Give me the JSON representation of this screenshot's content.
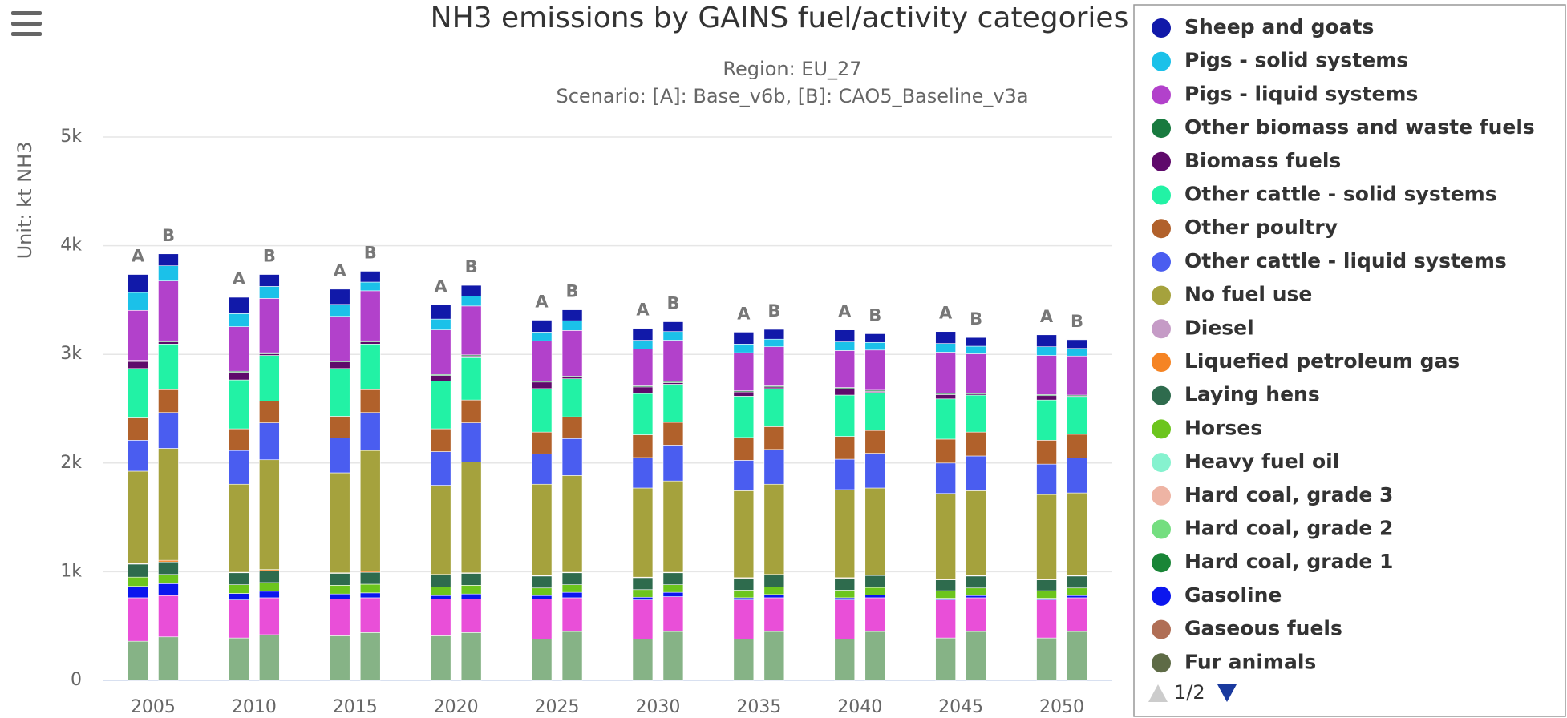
{
  "chart_data": {
    "type": "stacked_bar",
    "title": "NH3 emissions by GAINS fuel/activity categories",
    "subtitle": [
      "Region: EU_27",
      "Scenario: [A]: Base_v6b, [B]: CAO5_Baseline_v3a"
    ],
    "y_label": "Unit: kt NH3",
    "categories": [
      "2005",
      "2010",
      "2015",
      "2020",
      "2025",
      "2030",
      "2035",
      "2040",
      "2045",
      "2050"
    ],
    "stack_labels": [
      "A",
      "B"
    ],
    "ylim": [
      0,
      5000
    ],
    "yticks": [
      0,
      {
        "value": 1000,
        "label": "1k"
      },
      {
        "value": 2000,
        "label": "2k"
      },
      {
        "value": 3000,
        "label": "3k"
      },
      {
        "value": 4000,
        "label": "4k"
      },
      {
        "value": 5000,
        "label": "5k"
      }
    ],
    "grid": true,
    "legend_page": "1/2",
    "series": [
      {
        "name": "Sheep and goats",
        "color": "#1119a9",
        "values": [
          [
            165,
            110
          ],
          [
            150,
            110
          ],
          [
            140,
            100
          ],
          [
            130,
            100
          ],
          [
            110,
            100
          ],
          [
            110,
            90
          ],
          [
            110,
            90
          ],
          [
            110,
            80
          ],
          [
            110,
            80
          ],
          [
            110,
            80
          ]
        ]
      },
      {
        "name": "Pigs - solid systems",
        "color": "#1bc1e9",
        "values": [
          [
            165,
            140
          ],
          [
            120,
            110
          ],
          [
            110,
            80
          ],
          [
            100,
            90
          ],
          [
            80,
            90
          ],
          [
            80,
            80
          ],
          [
            80,
            70
          ],
          [
            80,
            70
          ],
          [
            80,
            70
          ],
          [
            80,
            70
          ]
        ]
      },
      {
        "name": "Pigs - liquid systems",
        "color": "#b241cb",
        "values": [
          [
            460,
            550
          ],
          [
            410,
            500
          ],
          [
            410,
            460
          ],
          [
            410,
            450
          ],
          [
            370,
            420
          ],
          [
            340,
            380
          ],
          [
            350,
            360
          ],
          [
            340,
            370
          ],
          [
            380,
            360
          ],
          [
            360,
            360
          ]
        ]
      },
      {
        "name": "Other biomass and waste fuels",
        "color": "#187a3f",
        "values": [
          [
            10,
            10
          ],
          [
            10,
            10
          ],
          [
            10,
            10
          ],
          [
            10,
            10
          ],
          [
            10,
            10
          ],
          [
            10,
            10
          ],
          [
            10,
            10
          ],
          [
            10,
            10
          ],
          [
            10,
            10
          ],
          [
            10,
            10
          ]
        ]
      },
      {
        "name": "Biomass fuels",
        "color": "#5f0a6b",
        "values": [
          [
            65,
            20
          ],
          [
            70,
            15
          ],
          [
            60,
            20
          ],
          [
            50,
            15
          ],
          [
            60,
            15
          ],
          [
            60,
            15
          ],
          [
            40,
            15
          ],
          [
            60,
            10
          ],
          [
            40,
            10
          ],
          [
            40,
            10
          ]
        ]
      },
      {
        "name": "Other cattle - solid systems",
        "color": "#22f2a5",
        "values": [
          [
            455,
            420
          ],
          [
            450,
            420
          ],
          [
            440,
            420
          ],
          [
            440,
            390
          ],
          [
            400,
            350
          ],
          [
            380,
            350
          ],
          [
            380,
            350
          ],
          [
            380,
            350
          ],
          [
            370,
            340
          ],
          [
            370,
            340
          ]
        ]
      },
      {
        "name": "Other poultry",
        "color": "#b1612b",
        "values": [
          [
            205,
            210
          ],
          [
            200,
            200
          ],
          [
            200,
            210
          ],
          [
            210,
            210
          ],
          [
            200,
            200
          ],
          [
            210,
            210
          ],
          [
            210,
            210
          ],
          [
            210,
            210
          ],
          [
            220,
            220
          ],
          [
            220,
            220
          ]
        ]
      },
      {
        "name": "Other cattle - liquid systems",
        "color": "#4a5df0",
        "values": [
          [
            285,
            330
          ],
          [
            310,
            340
          ],
          [
            320,
            350
          ],
          [
            310,
            360
          ],
          [
            280,
            340
          ],
          [
            280,
            330
          ],
          [
            280,
            320
          ],
          [
            280,
            320
          ],
          [
            280,
            320
          ],
          [
            280,
            320
          ]
        ]
      },
      {
        "name": "No fuel use",
        "color": "#a5a23d",
        "values": [
          [
            850,
            1030
          ],
          [
            810,
            1010
          ],
          [
            920,
            1110
          ],
          [
            820,
            1020
          ],
          [
            840,
            890
          ],
          [
            820,
            840
          ],
          [
            800,
            830
          ],
          [
            810,
            800
          ],
          [
            790,
            780
          ],
          [
            780,
            760
          ]
        ]
      },
      {
        "name": "Diesel",
        "color": "#c59bc6",
        "values": [
          [
            0,
            0
          ],
          [
            0,
            0
          ],
          [
            0,
            0
          ],
          [
            0,
            0
          ],
          [
            0,
            0
          ],
          [
            0,
            0
          ],
          [
            0,
            0
          ],
          [
            0,
            0
          ],
          [
            0,
            0
          ],
          [
            0,
            0
          ]
        ]
      },
      {
        "name": "Liquefied petroleum gas",
        "color": "#f58424",
        "values": [
          [
            5,
            15
          ],
          [
            5,
            10
          ],
          [
            5,
            10
          ],
          [
            5,
            5
          ],
          [
            5,
            5
          ],
          [
            5,
            5
          ],
          [
            5,
            5
          ],
          [
            5,
            5
          ],
          [
            5,
            5
          ],
          [
            5,
            5
          ]
        ]
      },
      {
        "name": "Laying hens",
        "color": "#2e6b4d",
        "values": [
          [
            120,
            115
          ],
          [
            110,
            110
          ],
          [
            110,
            110
          ],
          [
            110,
            110
          ],
          [
            110,
            110
          ],
          [
            110,
            110
          ],
          [
            110,
            110
          ],
          [
            110,
            110
          ],
          [
            100,
            110
          ],
          [
            100,
            110
          ]
        ]
      },
      {
        "name": "Horses",
        "color": "#6cc51d",
        "values": [
          [
            85,
            85
          ],
          [
            80,
            80
          ],
          [
            80,
            80
          ],
          [
            80,
            80
          ],
          [
            70,
            70
          ],
          [
            70,
            70
          ],
          [
            70,
            70
          ],
          [
            70,
            70
          ],
          [
            70,
            70
          ],
          [
            70,
            70
          ]
        ]
      },
      {
        "name": "Heavy fuel oil",
        "color": "#86f2cf",
        "values": [
          [
            0,
            0
          ],
          [
            0,
            0
          ],
          [
            0,
            0
          ],
          [
            0,
            0
          ],
          [
            0,
            0
          ],
          [
            0,
            0
          ],
          [
            0,
            0
          ],
          [
            0,
            0
          ],
          [
            0,
            0
          ],
          [
            0,
            0
          ]
        ]
      },
      {
        "name": "Hard coal, grade 3",
        "color": "#eeb4a4",
        "values": [
          [
            0,
            0
          ],
          [
            0,
            0
          ],
          [
            0,
            0
          ],
          [
            0,
            0
          ],
          [
            0,
            0
          ],
          [
            0,
            0
          ],
          [
            0,
            0
          ],
          [
            0,
            0
          ],
          [
            0,
            0
          ],
          [
            0,
            0
          ]
        ]
      },
      {
        "name": "Hard coal, grade 2",
        "color": "#74de80",
        "values": [
          [
            0,
            0
          ],
          [
            0,
            0
          ],
          [
            0,
            0
          ],
          [
            0,
            0
          ],
          [
            0,
            0
          ],
          [
            0,
            0
          ],
          [
            0,
            0
          ],
          [
            0,
            0
          ],
          [
            0,
            0
          ],
          [
            0,
            0
          ]
        ]
      },
      {
        "name": "Hard coal, grade 1",
        "color": "#198537",
        "values": [
          [
            0,
            0
          ],
          [
            0,
            0
          ],
          [
            0,
            0
          ],
          [
            0,
            0
          ],
          [
            0,
            0
          ],
          [
            0,
            0
          ],
          [
            0,
            0
          ],
          [
            0,
            0
          ],
          [
            0,
            0
          ],
          [
            0,
            0
          ]
        ]
      },
      {
        "name": "Gasoline",
        "color": "#0b16ee",
        "values": [
          [
            105,
            110
          ],
          [
            60,
            60
          ],
          [
            45,
            45
          ],
          [
            30,
            45
          ],
          [
            30,
            50
          ],
          [
            25,
            40
          ],
          [
            20,
            30
          ],
          [
            20,
            25
          ],
          [
            15,
            20
          ],
          [
            15,
            20
          ]
        ]
      },
      {
        "name": "Gaseous fuels",
        "color": "#b06e55",
        "values": [
          [
            0,
            0
          ],
          [
            0,
            0
          ],
          [
            0,
            0
          ],
          [
            0,
            0
          ],
          [
            0,
            0
          ],
          [
            0,
            0
          ],
          [
            0,
            0
          ],
          [
            0,
            0
          ],
          [
            0,
            0
          ],
          [
            0,
            0
          ]
        ]
      },
      {
        "name": "Fur animals",
        "color": "#5e6b46",
        "values": [
          [
            0,
            0
          ],
          [
            0,
            0
          ],
          [
            0,
            0
          ],
          [
            0,
            0
          ],
          [
            0,
            0
          ],
          [
            0,
            0
          ],
          [
            0,
            0
          ],
          [
            0,
            0
          ],
          [
            0,
            0
          ],
          [
            0,
            0
          ]
        ]
      },
      {
        "name": null,
        "color": "#e94fd8",
        "values": [
          [
            400,
            380
          ],
          [
            350,
            340
          ],
          [
            340,
            320
          ],
          [
            340,
            310
          ],
          [
            370,
            310
          ],
          [
            360,
            320
          ],
          [
            360,
            310
          ],
          [
            360,
            310
          ],
          [
            350,
            310
          ],
          [
            350,
            310
          ]
        ]
      },
      {
        "name": null,
        "color": "#86b386",
        "values": [
          [
            360,
            400
          ],
          [
            390,
            420
          ],
          [
            410,
            440
          ],
          [
            410,
            440
          ],
          [
            380,
            450
          ],
          [
            380,
            450
          ],
          [
            380,
            450
          ],
          [
            380,
            450
          ],
          [
            390,
            450
          ],
          [
            390,
            450
          ]
        ]
      }
    ]
  }
}
